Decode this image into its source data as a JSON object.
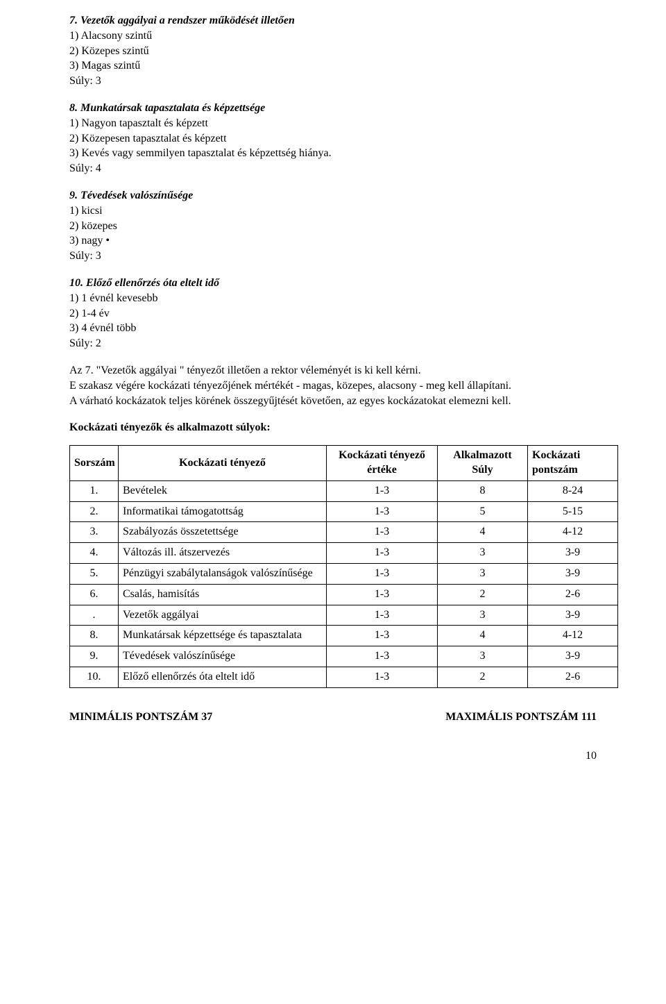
{
  "items": [
    {
      "title": "7. Vezetők aggályai a rendszer működését illetően",
      "lines": [
        "1) Alacsony szintű",
        "2) Közepes szintű",
        "3) Magas szintű",
        "Súly: 3"
      ]
    },
    {
      "title": "8. Munkatársak tapasztalata és képzettsége",
      "lines": [
        "1) Nagyon tapasztalt és képzett",
        "2) Közepesen tapasztalat és képzett",
        "3) Kevés vagy semmilyen tapasztalat és képzettség hiánya.",
        "Súly: 4"
      ]
    },
    {
      "title": "9. Tévedések valószínűsége",
      "lines": [
        "1) kicsi",
        "2) közepes",
        "3) nagy •",
        "Súly: 3"
      ]
    },
    {
      "title": "10. Előző ellenőrzés óta eltelt idő",
      "lines": [
        "1) 1 évnél kevesebb",
        "2) 1-4 év",
        "3) 4 évnél több",
        "Súly: 2"
      ]
    }
  ],
  "paragraph": [
    "Az 7. \"Vezetők aggályai \" tényezőt illetően a rektor véleményét is ki kell kérni.",
    "E szakasz végére kockázati tényezőjének mértékét - magas, közepes, alacsony - meg kell állapítani.",
    "A várható kockázatok teljes körének összegyűjtését követően, az egyes kockázatokat elemezni kell."
  ],
  "section_heading": "Kockázati tényezők és alkalmazott súlyok:",
  "table": {
    "headers": {
      "num": "Sorszám",
      "name": "Kockázati tényező",
      "value": "Kockázati tényező értéke",
      "weight": "Alkalmazott Súly",
      "points": "Kockázati pontszám"
    },
    "rows": [
      {
        "num": "1.",
        "name": "Bevételek",
        "value": "1-3",
        "wt": "8",
        "pt": "8-24"
      },
      {
        "num": "2.",
        "name": "Informatikai támogatottság",
        "value": "1-3",
        "wt": "5",
        "pt": "5-15"
      },
      {
        "num": "3.",
        "name": "Szabályozás összetettsége",
        "value": "1-3",
        "wt": "4",
        "pt": "4-12"
      },
      {
        "num": "4.",
        "name": "Változás ill. átszervezés",
        "value": "1-3",
        "wt": "3",
        "pt": "3-9"
      },
      {
        "num": "5.",
        "name": "Pénzügyi szabálytalanságok valószínűsége",
        "value": "1-3",
        "wt": "3",
        "pt": "3-9"
      },
      {
        "num": "6.",
        "name": "Csalás, hamisítás",
        "value": "1-3",
        "wt": "2",
        "pt": "2-6"
      },
      {
        "num": ".",
        "name": "Vezetők aggályai",
        "value": "1-3",
        "wt": "3",
        "pt": "3-9"
      },
      {
        "num": "8.",
        "name": "Munkatársak képzettsége és tapasztalata",
        "value": "1-3",
        "wt": "4",
        "pt": "4-12"
      },
      {
        "num": "9.",
        "name": "Tévedések valószínűsége",
        "value": "1-3",
        "wt": "3",
        "pt": "3-9"
      },
      {
        "num": "10.",
        "name": "Előző ellenőrzés óta eltelt idő",
        "value": "1-3",
        "wt": "2",
        "pt": "2-6"
      }
    ]
  },
  "min_label": "MINIMÁLIS PONTSZÁM 37",
  "max_label": "MAXIMÁLIS PONTSZÁM 111",
  "page_number": "10"
}
